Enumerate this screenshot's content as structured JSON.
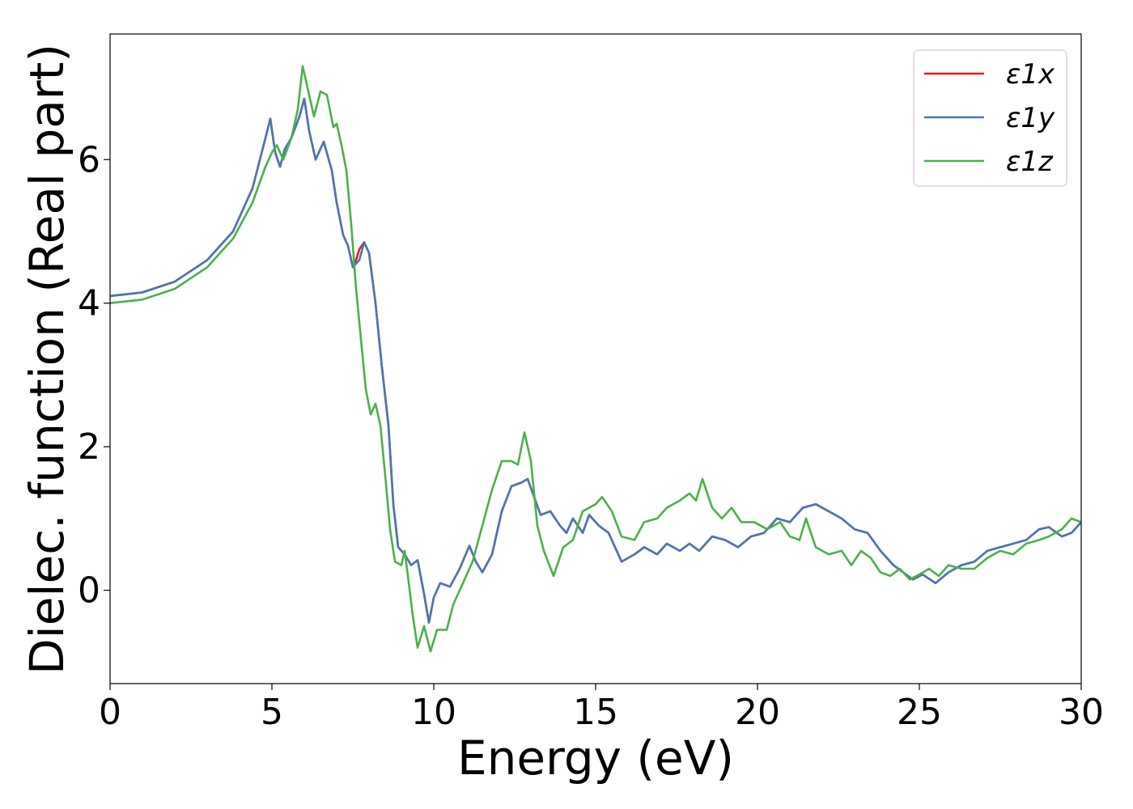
{
  "chart_data": {
    "type": "line",
    "title": "",
    "xlabel": "Energy (eV)",
    "ylabel": "Dielec. function (Real part)",
    "xlim": [
      0,
      30
    ],
    "ylim": [
      -1.3,
      7.75
    ],
    "xticks": [
      0,
      5,
      10,
      15,
      20,
      25,
      30
    ],
    "xtick_labels": [
      "0",
      "5",
      "10",
      "15",
      "20",
      "25",
      "30"
    ],
    "yticks": [
      0,
      2,
      4,
      6
    ],
    "ytick_labels": [
      "0",
      "2",
      "4",
      "6"
    ],
    "grid": false,
    "legend_position": "top-right",
    "series": [
      {
        "name": "ε1x",
        "color": "#e41a1c",
        "points": [
          [
            0,
            4.1
          ],
          [
            1,
            4.15
          ],
          [
            2,
            4.3
          ],
          [
            3,
            4.6
          ],
          [
            3.8,
            5.0
          ],
          [
            4.4,
            5.6
          ],
          [
            4.8,
            6.3
          ],
          [
            4.95,
            6.57
          ],
          [
            5.1,
            6.1
          ],
          [
            5.25,
            5.9
          ],
          [
            5.4,
            6.15
          ],
          [
            5.6,
            6.3
          ],
          [
            5.85,
            6.6
          ],
          [
            6.0,
            6.85
          ],
          [
            6.15,
            6.4
          ],
          [
            6.35,
            6.0
          ],
          [
            6.6,
            6.25
          ],
          [
            6.85,
            5.85
          ],
          [
            7.0,
            5.4
          ],
          [
            7.2,
            4.95
          ],
          [
            7.35,
            4.8
          ],
          [
            7.5,
            4.5
          ],
          [
            7.6,
            4.6
          ],
          [
            7.7,
            4.75
          ],
          [
            7.85,
            4.85
          ],
          [
            8.0,
            4.7
          ],
          [
            8.2,
            4.0
          ],
          [
            8.4,
            3.1
          ],
          [
            8.6,
            2.3
          ],
          [
            8.75,
            1.2
          ],
          [
            8.9,
            0.6
          ],
          [
            9.1,
            0.5
          ],
          [
            9.3,
            0.35
          ],
          [
            9.5,
            0.42
          ],
          [
            9.7,
            -0.05
          ],
          [
            9.85,
            -0.45
          ],
          [
            10.0,
            -0.1
          ],
          [
            10.2,
            0.1
          ],
          [
            10.5,
            0.05
          ],
          [
            10.8,
            0.3
          ],
          [
            11.1,
            0.62
          ],
          [
            11.3,
            0.4
          ],
          [
            11.5,
            0.25
          ],
          [
            11.8,
            0.5
          ],
          [
            12.1,
            1.1
          ],
          [
            12.4,
            1.45
          ],
          [
            12.7,
            1.5
          ],
          [
            12.9,
            1.55
          ],
          [
            13.1,
            1.3
          ],
          [
            13.3,
            1.05
          ],
          [
            13.6,
            1.1
          ],
          [
            13.9,
            0.9
          ],
          [
            14.1,
            0.8
          ],
          [
            14.3,
            1.0
          ],
          [
            14.6,
            0.8
          ],
          [
            14.8,
            1.05
          ],
          [
            15.1,
            0.9
          ],
          [
            15.4,
            0.8
          ],
          [
            15.8,
            0.4
          ],
          [
            16.2,
            0.5
          ],
          [
            16.5,
            0.6
          ],
          [
            16.9,
            0.5
          ],
          [
            17.2,
            0.65
          ],
          [
            17.6,
            0.55
          ],
          [
            17.9,
            0.65
          ],
          [
            18.2,
            0.55
          ],
          [
            18.6,
            0.75
          ],
          [
            19.0,
            0.7
          ],
          [
            19.4,
            0.6
          ],
          [
            19.8,
            0.75
          ],
          [
            20.2,
            0.8
          ],
          [
            20.6,
            1.0
          ],
          [
            21.0,
            0.95
          ],
          [
            21.4,
            1.15
          ],
          [
            21.8,
            1.2
          ],
          [
            22.2,
            1.1
          ],
          [
            22.6,
            1.0
          ],
          [
            23.0,
            0.85
          ],
          [
            23.4,
            0.8
          ],
          [
            23.8,
            0.55
          ],
          [
            24.2,
            0.35
          ],
          [
            24.5,
            0.25
          ],
          [
            24.8,
            0.15
          ],
          [
            25.1,
            0.22
          ],
          [
            25.5,
            0.1
          ],
          [
            25.9,
            0.25
          ],
          [
            26.3,
            0.35
          ],
          [
            26.7,
            0.4
          ],
          [
            27.1,
            0.55
          ],
          [
            27.5,
            0.6
          ],
          [
            27.9,
            0.65
          ],
          [
            28.3,
            0.7
          ],
          [
            28.7,
            0.85
          ],
          [
            29.0,
            0.88
          ],
          [
            29.4,
            0.75
          ],
          [
            29.7,
            0.8
          ],
          [
            30,
            0.95
          ]
        ]
      },
      {
        "name": "ε1y",
        "color": "#4878b0",
        "points": [
          [
            0,
            4.1
          ],
          [
            1,
            4.15
          ],
          [
            2,
            4.3
          ],
          [
            3,
            4.6
          ],
          [
            3.8,
            5.0
          ],
          [
            4.4,
            5.6
          ],
          [
            4.8,
            6.3
          ],
          [
            4.95,
            6.57
          ],
          [
            5.1,
            6.1
          ],
          [
            5.25,
            5.9
          ],
          [
            5.4,
            6.15
          ],
          [
            5.6,
            6.3
          ],
          [
            5.85,
            6.6
          ],
          [
            6.0,
            6.85
          ],
          [
            6.15,
            6.4
          ],
          [
            6.35,
            6.0
          ],
          [
            6.6,
            6.25
          ],
          [
            6.85,
            5.85
          ],
          [
            7.0,
            5.4
          ],
          [
            7.2,
            4.95
          ],
          [
            7.35,
            4.8
          ],
          [
            7.5,
            4.5
          ],
          [
            7.6,
            4.55
          ],
          [
            7.7,
            4.6
          ],
          [
            7.85,
            4.85
          ],
          [
            8.0,
            4.7
          ],
          [
            8.2,
            4.0
          ],
          [
            8.4,
            3.1
          ],
          [
            8.6,
            2.3
          ],
          [
            8.75,
            1.2
          ],
          [
            8.9,
            0.6
          ],
          [
            9.1,
            0.5
          ],
          [
            9.3,
            0.35
          ],
          [
            9.5,
            0.42
          ],
          [
            9.7,
            -0.05
          ],
          [
            9.85,
            -0.45
          ],
          [
            10.0,
            -0.1
          ],
          [
            10.2,
            0.1
          ],
          [
            10.5,
            0.05
          ],
          [
            10.8,
            0.3
          ],
          [
            11.1,
            0.62
          ],
          [
            11.3,
            0.4
          ],
          [
            11.5,
            0.25
          ],
          [
            11.8,
            0.5
          ],
          [
            12.1,
            1.1
          ],
          [
            12.4,
            1.45
          ],
          [
            12.7,
            1.5
          ],
          [
            12.9,
            1.55
          ],
          [
            13.1,
            1.3
          ],
          [
            13.3,
            1.05
          ],
          [
            13.6,
            1.1
          ],
          [
            13.9,
            0.9
          ],
          [
            14.1,
            0.8
          ],
          [
            14.3,
            1.0
          ],
          [
            14.6,
            0.8
          ],
          [
            14.8,
            1.05
          ],
          [
            15.1,
            0.9
          ],
          [
            15.4,
            0.8
          ],
          [
            15.8,
            0.4
          ],
          [
            16.2,
            0.5
          ],
          [
            16.5,
            0.6
          ],
          [
            16.9,
            0.5
          ],
          [
            17.2,
            0.65
          ],
          [
            17.6,
            0.55
          ],
          [
            17.9,
            0.65
          ],
          [
            18.2,
            0.55
          ],
          [
            18.6,
            0.75
          ],
          [
            19.0,
            0.7
          ],
          [
            19.4,
            0.6
          ],
          [
            19.8,
            0.75
          ],
          [
            20.2,
            0.8
          ],
          [
            20.6,
            1.0
          ],
          [
            21.0,
            0.95
          ],
          [
            21.4,
            1.15
          ],
          [
            21.8,
            1.2
          ],
          [
            22.2,
            1.1
          ],
          [
            22.6,
            1.0
          ],
          [
            23.0,
            0.85
          ],
          [
            23.4,
            0.8
          ],
          [
            23.8,
            0.55
          ],
          [
            24.2,
            0.35
          ],
          [
            24.5,
            0.25
          ],
          [
            24.8,
            0.15
          ],
          [
            25.1,
            0.22
          ],
          [
            25.5,
            0.1
          ],
          [
            25.9,
            0.25
          ],
          [
            26.3,
            0.35
          ],
          [
            26.7,
            0.4
          ],
          [
            27.1,
            0.55
          ],
          [
            27.5,
            0.6
          ],
          [
            27.9,
            0.65
          ],
          [
            28.3,
            0.7
          ],
          [
            28.7,
            0.85
          ],
          [
            29.0,
            0.88
          ],
          [
            29.4,
            0.75
          ],
          [
            29.7,
            0.8
          ],
          [
            30,
            0.95
          ]
        ]
      },
      {
        "name": "ε1z",
        "color": "#4daf4a",
        "points": [
          [
            0,
            4.0
          ],
          [
            1,
            4.05
          ],
          [
            2,
            4.2
          ],
          [
            3,
            4.5
          ],
          [
            3.8,
            4.9
          ],
          [
            4.4,
            5.4
          ],
          [
            4.8,
            5.9
          ],
          [
            5.0,
            6.1
          ],
          [
            5.15,
            6.2
          ],
          [
            5.35,
            6.0
          ],
          [
            5.6,
            6.3
          ],
          [
            5.8,
            6.7
          ],
          [
            5.95,
            7.3
          ],
          [
            6.1,
            7.0
          ],
          [
            6.3,
            6.6
          ],
          [
            6.5,
            6.95
          ],
          [
            6.7,
            6.9
          ],
          [
            6.9,
            6.45
          ],
          [
            7.0,
            6.5
          ],
          [
            7.15,
            6.2
          ],
          [
            7.3,
            5.85
          ],
          [
            7.45,
            5.1
          ],
          [
            7.6,
            4.2
          ],
          [
            7.75,
            3.5
          ],
          [
            7.9,
            2.8
          ],
          [
            8.05,
            2.45
          ],
          [
            8.2,
            2.6
          ],
          [
            8.35,
            2.3
          ],
          [
            8.5,
            1.6
          ],
          [
            8.65,
            0.85
          ],
          [
            8.8,
            0.4
          ],
          [
            9.0,
            0.35
          ],
          [
            9.1,
            0.55
          ],
          [
            9.2,
            0.2
          ],
          [
            9.35,
            -0.35
          ],
          [
            9.5,
            -0.8
          ],
          [
            9.7,
            -0.5
          ],
          [
            9.9,
            -0.85
          ],
          [
            10.1,
            -0.55
          ],
          [
            10.4,
            -0.55
          ],
          [
            10.6,
            -0.2
          ],
          [
            10.9,
            0.1
          ],
          [
            11.2,
            0.4
          ],
          [
            11.5,
            0.9
          ],
          [
            11.8,
            1.4
          ],
          [
            12.1,
            1.8
          ],
          [
            12.4,
            1.8
          ],
          [
            12.6,
            1.75
          ],
          [
            12.8,
            2.2
          ],
          [
            13.0,
            1.8
          ],
          [
            13.2,
            0.9
          ],
          [
            13.4,
            0.55
          ],
          [
            13.7,
            0.2
          ],
          [
            14.0,
            0.6
          ],
          [
            14.3,
            0.7
          ],
          [
            14.6,
            1.1
          ],
          [
            15.0,
            1.2
          ],
          [
            15.2,
            1.3
          ],
          [
            15.5,
            1.1
          ],
          [
            15.8,
            0.75
          ],
          [
            16.2,
            0.7
          ],
          [
            16.5,
            0.95
          ],
          [
            16.9,
            1.0
          ],
          [
            17.2,
            1.15
          ],
          [
            17.6,
            1.25
          ],
          [
            17.9,
            1.35
          ],
          [
            18.1,
            1.25
          ],
          [
            18.3,
            1.55
          ],
          [
            18.6,
            1.15
          ],
          [
            18.9,
            1.0
          ],
          [
            19.2,
            1.15
          ],
          [
            19.5,
            0.95
          ],
          [
            19.9,
            0.95
          ],
          [
            20.3,
            0.85
          ],
          [
            20.7,
            0.95
          ],
          [
            21.0,
            0.75
          ],
          [
            21.3,
            0.7
          ],
          [
            21.5,
            1.0
          ],
          [
            21.8,
            0.6
          ],
          [
            22.2,
            0.5
          ],
          [
            22.6,
            0.55
          ],
          [
            22.9,
            0.35
          ],
          [
            23.2,
            0.55
          ],
          [
            23.5,
            0.45
          ],
          [
            23.8,
            0.25
          ],
          [
            24.1,
            0.2
          ],
          [
            24.4,
            0.3
          ],
          [
            24.7,
            0.15
          ],
          [
            25.0,
            0.22
          ],
          [
            25.3,
            0.3
          ],
          [
            25.6,
            0.2
          ],
          [
            25.9,
            0.35
          ],
          [
            26.3,
            0.3
          ],
          [
            26.7,
            0.3
          ],
          [
            27.1,
            0.45
          ],
          [
            27.5,
            0.55
          ],
          [
            27.9,
            0.5
          ],
          [
            28.3,
            0.65
          ],
          [
            28.7,
            0.7
          ],
          [
            29.0,
            0.75
          ],
          [
            29.4,
            0.85
          ],
          [
            29.7,
            1.0
          ],
          [
            30,
            0.95
          ]
        ]
      }
    ]
  }
}
